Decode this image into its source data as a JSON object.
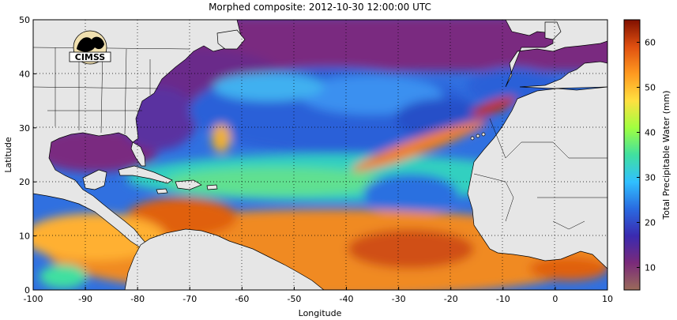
{
  "title": "Morphed composite: 2012-10-30 12:00:00 UTC",
  "logo_text": "CIMSS",
  "map": {
    "xlabel": "Longitude",
    "ylabel": "Latitude",
    "xlim": [
      -100,
      10
    ],
    "ylim": [
      0,
      50
    ],
    "xticks": [
      -100,
      -90,
      -80,
      -70,
      -60,
      -50,
      -40,
      -30,
      -20,
      -10,
      0,
      10
    ],
    "yticks": [
      0,
      10,
      20,
      30,
      40,
      50
    ],
    "grid": "dotted",
    "land_color": "#e6e6e6"
  },
  "colorbar": {
    "label": "Total Precipitable Water (mm)",
    "range": [
      5,
      65
    ],
    "ticks": [
      10,
      20,
      30,
      40,
      50,
      60
    ],
    "colors": [
      "#9a6b5a",
      "#7a2a7a",
      "#3a2ab0",
      "#2a6ae0",
      "#30c0ff",
      "#40e0a0",
      "#a0ff40",
      "#ffe040",
      "#ff9a20",
      "#e05010",
      "#801000"
    ]
  }
}
